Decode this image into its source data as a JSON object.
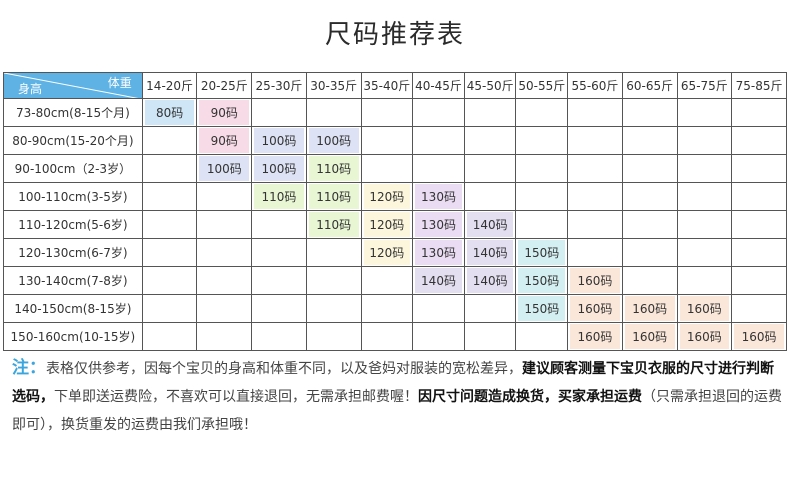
{
  "title": "尺码推荐表",
  "header": {
    "corner_weight": "体重",
    "corner_height": "身高",
    "weights": [
      "14-20斤",
      "20-25斤",
      "25-30斤",
      "30-35斤",
      "35-40斤",
      "40-45斤",
      "45-50斤",
      "50-55斤",
      "55-60斤",
      "60-65斤",
      "65-75斤",
      "75-85斤"
    ]
  },
  "colors": {
    "header_blue": "#5fb2e4",
    "size_80": "#cfe6f7",
    "size_90": "#f7dbe7",
    "size_100": "#dde3f4",
    "size_110": "#e8f6d4",
    "size_120": "#fbf6dc",
    "size_130": "#eadcf3",
    "size_140": "#e3def0",
    "size_150": "#d4eff2",
    "size_160": "#fae7da",
    "note_lead": "#3aa6dd"
  },
  "rows": [
    {
      "height": "73-80cm(8-15个月)",
      "cells": [
        "80码",
        "90码",
        "",
        "",
        "",
        "",
        "",
        "",
        "",
        "",
        "",
        ""
      ]
    },
    {
      "height": "80-90cm(15-20个月)",
      "cells": [
        "",
        "90码",
        "100码",
        "100码",
        "",
        "",
        "",
        "",
        "",
        "",
        "",
        ""
      ]
    },
    {
      "height": "90-100cm（2-3岁）",
      "cells": [
        "",
        "100码",
        "100码",
        "110码",
        "",
        "",
        "",
        "",
        "",
        "",
        "",
        ""
      ]
    },
    {
      "height": "100-110cm(3-5岁)",
      "cells": [
        "",
        "",
        "110码",
        "110码",
        "120码",
        "130码",
        "",
        "",
        "",
        "",
        "",
        ""
      ]
    },
    {
      "height": "110-120cm(5-6岁)",
      "cells": [
        "",
        "",
        "",
        "110码",
        "120码",
        "130码",
        "140码",
        "",
        "",
        "",
        "",
        ""
      ]
    },
    {
      "height": "120-130cm(6-7岁)",
      "cells": [
        "",
        "",
        "",
        "",
        "120码",
        "130码",
        "140码",
        "150码",
        "",
        "",
        "",
        ""
      ]
    },
    {
      "height": "130-140cm(7-8岁)",
      "cells": [
        "",
        "",
        "",
        "",
        "",
        "140码",
        "140码",
        "150码",
        "160码",
        "",
        "",
        ""
      ]
    },
    {
      "height": "140-150cm(8-15岁)",
      "cells": [
        "",
        "",
        "",
        "",
        "",
        "",
        "",
        "150码",
        "160码",
        "160码",
        "160码",
        ""
      ]
    },
    {
      "height": "150-160cm(10-15岁)",
      "cells": [
        "",
        "",
        "",
        "",
        "",
        "",
        "",
        "",
        "160码",
        "160码",
        "160码",
        "160码"
      ]
    }
  ],
  "note": {
    "lead": "注：",
    "p1": "表格仅供参考，因每个宝贝的身高和体重不同，以及爸妈对服装的宽松差异，",
    "b1": "建议顾客测量下宝贝衣服的尺寸进行判断选码，",
    "p2": "下单即送运费险，不喜欢可以直接退回，无需承担邮费喔！",
    "b2": "因尺寸问题造成换货，买家承担运费",
    "p3": "（只需承担退回的运费即可），换货重发的运费由我们承担哦！"
  }
}
